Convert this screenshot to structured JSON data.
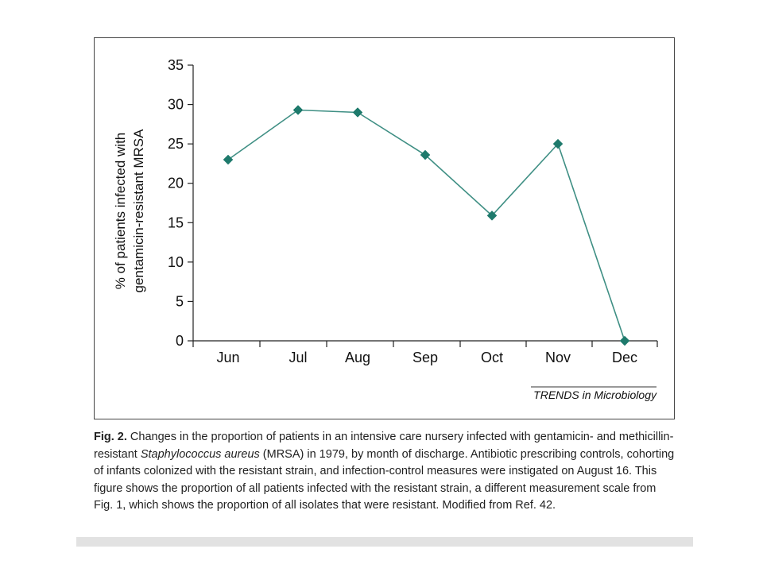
{
  "chart_data": {
    "type": "line",
    "categories": [
      "Jun",
      "Jul",
      "Aug",
      "Sep",
      "Oct",
      "Nov",
      "Dec"
    ],
    "series": [
      {
        "values": [
          23,
          29.3,
          29,
          23.6,
          15.9,
          25,
          0
        ]
      }
    ],
    "ylabel_line1": "% of patients infected with",
    "ylabel_line2": "gentamicin-resistant MRSA",
    "xlabel": "",
    "ylim": [
      0,
      35
    ],
    "yticks": [
      0,
      5,
      10,
      15,
      20,
      25,
      30,
      35
    ],
    "grid": false,
    "marker": "diamond",
    "line_color": "#3f8f84",
    "marker_color": "#1e7a6c",
    "source": "TRENDS in Microbiology"
  },
  "caption": {
    "label": "Fig. 2.",
    "text_before_italic": " Changes in the proportion of patients in an intensive care nursery infected with gentamicin- and methicillin-resistant ",
    "italic": "Staphylococcus aureus",
    "text_after_italic": " (MRSA) in 1979, by month of discharge. Antibiotic prescribing controls, cohorting of infants colonized with the resistant strain, and infection-control measures were instigated on August 16. This figure shows the proportion of all patients infected with the resistant strain, a different measurement scale from Fig. 1, which shows the proportion of all isolates that were resistant. Modified from Ref. 42."
  }
}
